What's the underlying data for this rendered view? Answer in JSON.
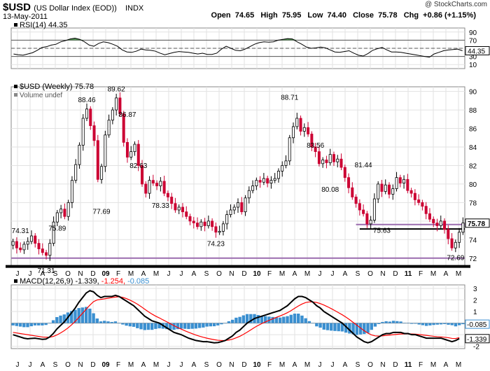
{
  "header": {
    "symbol": "$USD",
    "name": "(US Dollar Index (EOD))",
    "exchange": "INDX",
    "date": "13-May-2011",
    "open_label": "Open",
    "open": "74.65",
    "high_label": "High",
    "high": "75.95",
    "low_label": "Low",
    "low": "74.40",
    "close_label": "Close",
    "close": "75.78",
    "chg_label": "Chg",
    "chg": "+0.86 (+1.15%)",
    "copyright": "@ StockCharts.com"
  },
  "colors": {
    "up": "#000000",
    "down": "#cc0033",
    "macd_line": "#000000",
    "signal_line": "#ff0000",
    "histogram": "#3a8fd0",
    "rsi_line": "#000000",
    "rsi_fill": "#2f7d2f",
    "support": "#9a6cae"
  },
  "chart_data": [
    {
      "type": "line",
      "title": "RSI(14) 44.35",
      "label": "RSI(14)",
      "value_label": "44.35",
      "ylim": [
        0,
        100
      ],
      "yticks": [
        10,
        30,
        50,
        70,
        90
      ],
      "reference_lines": [
        30,
        50,
        70
      ],
      "series": [
        {
          "name": "RSI(14)",
          "values": [
            36,
            34,
            33,
            36,
            39,
            45,
            52,
            54,
            58,
            60,
            66,
            69,
            73,
            75,
            72,
            66,
            58,
            55,
            62,
            66,
            64,
            60,
            55,
            46,
            41,
            40,
            43,
            48,
            46,
            45,
            43,
            38,
            34,
            37,
            40,
            42,
            41,
            40,
            38,
            36,
            38,
            35,
            35,
            38,
            48,
            55,
            50,
            45,
            44,
            48,
            54,
            60,
            64,
            66,
            65,
            66,
            70,
            72,
            74,
            73,
            66,
            60,
            53,
            50,
            51,
            53,
            51,
            46,
            41,
            40,
            42,
            44,
            38,
            33,
            31,
            37,
            45,
            49,
            52,
            46,
            41,
            41,
            40,
            38,
            36,
            34,
            32,
            30,
            28,
            36,
            40,
            44,
            46,
            47,
            48,
            44
          ]
        }
      ]
    },
    {
      "type": "candlestick",
      "title": "$USD (Weekly) 75.78",
      "label": "$USD (Weekly)",
      "value_label": "75.78",
      "volume_label": "Volume undef",
      "ylim": [
        71,
        90.5
      ],
      "yticks": [
        72,
        74,
        76,
        78,
        80,
        82,
        84,
        86,
        88,
        90
      ],
      "close_marker": 75.78,
      "support_levels": [
        75.63,
        72.0
      ],
      "close_line": 75.15,
      "thick_line": 71.1,
      "annotations": [
        {
          "text": "74.31",
          "value": 74.31
        },
        {
          "text": "71.31",
          "value": 71.31
        },
        {
          "text": "75.89",
          "value": 75.89
        },
        {
          "text": "88.46",
          "value": 88.46
        },
        {
          "text": "77.69",
          "value": 77.69
        },
        {
          "text": "89.62",
          "value": 89.62
        },
        {
          "text": "86.87",
          "value": 86.87
        },
        {
          "text": "82.63",
          "value": 82.63
        },
        {
          "text": "78.33",
          "value": 78.33
        },
        {
          "text": "74.23",
          "value": 74.23
        },
        {
          "text": "88.71",
          "value": 88.71
        },
        {
          "text": "83.56",
          "value": 83.56
        },
        {
          "text": "80.08",
          "value": 80.08
        },
        {
          "text": "81.44",
          "value": 81.44
        },
        {
          "text": "75.63",
          "value": 75.63
        },
        {
          "text": "72.69",
          "value": 72.69
        }
      ],
      "closes": [
        73.8,
        73.1,
        72.9,
        73.5,
        73.8,
        74.4,
        73.6,
        73.0,
        72.6,
        72.3,
        73.6,
        75.9,
        76.9,
        77.3,
        76.5,
        78.0,
        80.4,
        82.1,
        84.2,
        87.1,
        88.1,
        86.3,
        84.7,
        80.5,
        81.9,
        85.3,
        86.9,
        88.0,
        89.3,
        87.6,
        84.5,
        82.9,
        83.5,
        84.3,
        82.0,
        80.0,
        79.0,
        80.4,
        80.1,
        79.8,
        80.3,
        79.0,
        78.6,
        77.9,
        77.2,
        77.5,
        77.0,
        76.5,
        76.0,
        75.8,
        75.4,
        75.9,
        75.5,
        76.0,
        75.4,
        74.8,
        74.9,
        75.7,
        76.7,
        77.2,
        77.5,
        78.0,
        77.0,
        78.5,
        79.3,
        79.8,
        80.4,
        80.2,
        80.6,
        80.1,
        80.4,
        80.6,
        81.4,
        82.0,
        82.5,
        85.0,
        86.2,
        87.1,
        85.7,
        86.1,
        85.4,
        84.0,
        83.5,
        82.2,
        82.6,
        82.3,
        83.2,
        82.4,
        82.7,
        81.8,
        80.7,
        79.6,
        78.6,
        77.9,
        77.2,
        76.8,
        75.7,
        76.1,
        78.4,
        80.0,
        79.2,
        79.9,
        78.9,
        79.5,
        80.7,
        80.1,
        80.5,
        79.3,
        79.0,
        78.3,
        78.0,
        77.6,
        76.8,
        76.2,
        75.8,
        75.5,
        76.0,
        75.1,
        74.1,
        73.1,
        73.7,
        74.8,
        75.8
      ]
    },
    {
      "type": "line",
      "title": "MACD(12,26,9) -1.339, -1.254, -0.085",
      "label": "MACD(12,26,9)",
      "macd_value": "-1.339",
      "signal_value": "-1.254",
      "hist_value": "-0.085",
      "ylim": [
        -2.2,
        3.3
      ],
      "yticks": [
        -2,
        -1,
        0,
        1,
        2,
        3
      ],
      "series": [
        {
          "name": "MACD",
          "values": [
            -1.0,
            -1.1,
            -1.2,
            -1.3,
            -1.35,
            -1.32,
            -1.3,
            -1.35,
            -1.4,
            -1.38,
            -1.2,
            -0.9,
            -0.5,
            -0.2,
            0.1,
            0.5,
            0.9,
            1.3,
            1.8,
            2.2,
            2.6,
            2.8,
            2.7,
            2.4,
            2.2,
            2.3,
            2.3,
            2.3,
            2.4,
            2.3,
            2.1,
            1.9,
            1.7,
            1.5,
            1.2,
            0.9,
            0.6,
            0.4,
            0.2,
            0.1,
            0.0,
            -0.2,
            -0.4,
            -0.6,
            -0.8,
            -0.9,
            -1.0,
            -1.15,
            -1.3,
            -1.4,
            -1.5,
            -1.55,
            -1.6,
            -1.6,
            -1.65,
            -1.7,
            -1.68,
            -1.6,
            -1.5,
            -1.3,
            -1.1,
            -0.8,
            -0.6,
            -0.3,
            0.0,
            0.2,
            0.4,
            0.5,
            0.6,
            0.7,
            0.8,
            0.9,
            1.0,
            1.1,
            1.3,
            1.5,
            1.8,
            2.1,
            2.3,
            2.3,
            2.2,
            2.0,
            1.8,
            1.5,
            1.3,
            1.0,
            0.8,
            0.6,
            0.4,
            0.2,
            0.0,
            -0.3,
            -0.6,
            -0.9,
            -1.2,
            -1.4,
            -1.6,
            -1.7,
            -1.6,
            -1.4,
            -1.2,
            -1.0,
            -0.9,
            -0.9,
            -0.8,
            -0.8,
            -0.8,
            -0.9,
            -0.9,
            -1.0,
            -1.0,
            -1.1,
            -1.2,
            -1.3,
            -1.3,
            -1.3,
            -1.3,
            -1.3,
            -1.4,
            -1.5,
            -1.6,
            -1.5,
            -1.34
          ]
        },
        {
          "name": "Signal",
          "values": [
            -0.8,
            -0.85,
            -0.9,
            -0.95,
            -1.0,
            -1.05,
            -1.1,
            -1.15,
            -1.2,
            -1.22,
            -1.22,
            -1.15,
            -1.02,
            -0.85,
            -0.65,
            -0.42,
            -0.15,
            0.15,
            0.5,
            0.85,
            1.2,
            1.55,
            1.85,
            2.0,
            2.05,
            2.1,
            2.15,
            2.2,
            2.25,
            2.28,
            2.22,
            2.12,
            1.98,
            1.82,
            1.64,
            1.43,
            1.2,
            0.98,
            0.78,
            0.6,
            0.45,
            0.28,
            0.12,
            -0.05,
            -0.22,
            -0.38,
            -0.52,
            -0.66,
            -0.79,
            -0.91,
            -1.03,
            -1.13,
            -1.22,
            -1.3,
            -1.37,
            -1.43,
            -1.48,
            -1.5,
            -1.5,
            -1.46,
            -1.39,
            -1.27,
            -1.14,
            -0.97,
            -0.78,
            -0.58,
            -0.38,
            -0.2,
            -0.04,
            0.1,
            0.24,
            0.37,
            0.5,
            0.62,
            0.75,
            0.9,
            1.08,
            1.28,
            1.48,
            1.65,
            1.78,
            1.83,
            1.83,
            1.78,
            1.69,
            1.56,
            1.41,
            1.25,
            1.08,
            0.9,
            0.72,
            0.52,
            0.3,
            0.06,
            -0.18,
            -0.42,
            -0.66,
            -0.86,
            -1.02,
            -1.1,
            -1.12,
            -1.1,
            -1.06,
            -1.03,
            -1.0,
            -0.97,
            -0.94,
            -0.93,
            -0.93,
            -0.94,
            -0.95,
            -0.98,
            -1.02,
            -1.06,
            -1.1,
            -1.14,
            -1.17,
            -1.19,
            -1.22,
            -1.26,
            -1.32,
            -1.33,
            -1.25
          ]
        },
        {
          "name": "Histogram",
          "values": [
            -0.2,
            -0.25,
            -0.3,
            -0.35,
            -0.35,
            -0.27,
            -0.2,
            -0.2,
            -0.2,
            -0.16,
            0.02,
            0.25,
            0.52,
            0.65,
            0.75,
            0.92,
            1.05,
            1.15,
            1.3,
            1.35,
            1.4,
            1.25,
            0.85,
            0.4,
            0.15,
            0.2,
            0.15,
            0.1,
            0.15,
            0.02,
            -0.12,
            -0.22,
            -0.28,
            -0.32,
            -0.44,
            -0.53,
            -0.6,
            -0.58,
            -0.58,
            -0.5,
            -0.45,
            -0.48,
            -0.52,
            -0.55,
            -0.58,
            -0.52,
            -0.48,
            -0.49,
            -0.51,
            -0.49,
            -0.47,
            -0.42,
            -0.38,
            -0.3,
            -0.28,
            -0.27,
            -0.2,
            -0.1,
            0.0,
            0.16,
            0.29,
            0.47,
            0.54,
            0.67,
            0.78,
            0.78,
            0.78,
            0.7,
            0.64,
            0.6,
            0.56,
            0.53,
            0.5,
            0.48,
            0.55,
            0.6,
            0.72,
            0.82,
            0.82,
            0.65,
            0.42,
            0.17,
            -0.03,
            -0.28,
            -0.39,
            -0.56,
            -0.61,
            -0.65,
            -0.68,
            -0.7,
            -0.72,
            -0.82,
            -0.9,
            -0.96,
            -1.02,
            -0.98,
            -0.94,
            -0.84,
            -0.58,
            -0.3,
            -0.08,
            0.1,
            0.16,
            0.13,
            0.2,
            0.17,
            0.14,
            0.03,
            0.03,
            -0.06,
            -0.05,
            -0.12,
            -0.18,
            -0.24,
            -0.2,
            -0.16,
            -0.13,
            -0.11,
            -0.08,
            -0.14,
            -0.18,
            -0.28,
            -0.18,
            -0.09
          ]
        }
      ]
    }
  ],
  "x_axis": {
    "ticks": [
      {
        "label": "J",
        "bold": false
      },
      {
        "label": "J",
        "bold": false
      },
      {
        "label": "A",
        "bold": false
      },
      {
        "label": "S",
        "bold": false
      },
      {
        "label": "O",
        "bold": false
      },
      {
        "label": "N",
        "bold": false
      },
      {
        "label": "D",
        "bold": false
      },
      {
        "label": "09",
        "bold": true
      },
      {
        "label": "F",
        "bold": false
      },
      {
        "label": "M",
        "bold": false
      },
      {
        "label": "A",
        "bold": false
      },
      {
        "label": "M",
        "bold": false
      },
      {
        "label": "J",
        "bold": false
      },
      {
        "label": "J",
        "bold": false
      },
      {
        "label": "A",
        "bold": false
      },
      {
        "label": "S",
        "bold": false
      },
      {
        "label": "O",
        "bold": false
      },
      {
        "label": "N",
        "bold": false
      },
      {
        "label": "D",
        "bold": false
      },
      {
        "label": "10",
        "bold": true
      },
      {
        "label": "F",
        "bold": false
      },
      {
        "label": "M",
        "bold": false
      },
      {
        "label": "A",
        "bold": false
      },
      {
        "label": "M",
        "bold": false
      },
      {
        "label": "J",
        "bold": false
      },
      {
        "label": "J",
        "bold": false
      },
      {
        "label": "A",
        "bold": false
      },
      {
        "label": "S",
        "bold": false
      },
      {
        "label": "O",
        "bold": false
      },
      {
        "label": "N",
        "bold": false
      },
      {
        "label": "D",
        "bold": false
      },
      {
        "label": "11",
        "bold": true
      },
      {
        "label": "F",
        "bold": false
      },
      {
        "label": "M",
        "bold": false
      },
      {
        "label": "A",
        "bold": false
      },
      {
        "label": "M",
        "bold": false
      }
    ]
  }
}
